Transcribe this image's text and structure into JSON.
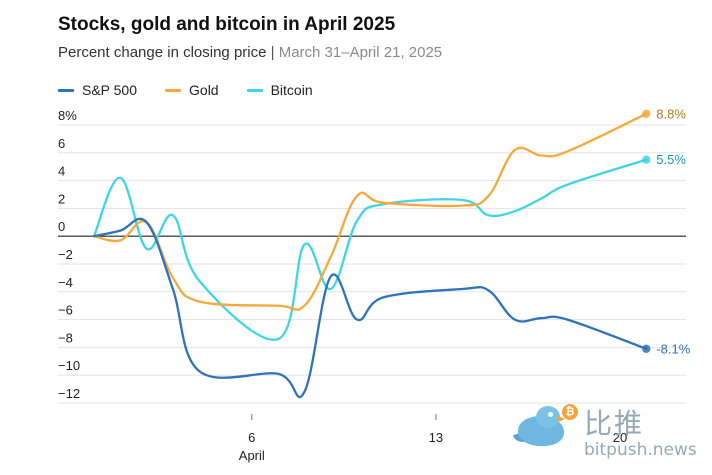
{
  "chart_data": {
    "type": "line",
    "title": "Stocks, gold and bitcoin in April 2025",
    "subtitle": "Percent change in closing price",
    "subtitle_range": "March 31–April 21, 2025",
    "x_dates": [
      "2025-03-31",
      "2025-04-01",
      "2025-04-02",
      "2025-04-03",
      "2025-04-04",
      "2025-04-07",
      "2025-04-08",
      "2025-04-09",
      "2025-04-10",
      "2025-04-11",
      "2025-04-14",
      "2025-04-15",
      "2025-04-16",
      "2025-04-17",
      "2025-04-18",
      "2025-04-21"
    ],
    "x_ticks": [
      {
        "date": "2025-04-06",
        "label": "6",
        "sublabel": "April"
      },
      {
        "date": "2025-04-13",
        "label": "13",
        "sublabel": ""
      },
      {
        "date": "2025-04-20",
        "label": "20",
        "sublabel": ""
      }
    ],
    "y_ticks": [
      {
        "value": 8,
        "label": "8%"
      },
      {
        "value": 6,
        "label": "6"
      },
      {
        "value": 4,
        "label": "4"
      },
      {
        "value": 2,
        "label": "2"
      },
      {
        "value": 0,
        "label": "0"
      },
      {
        "value": -2,
        "label": "−2"
      },
      {
        "value": -4,
        "label": "−4"
      },
      {
        "value": -6,
        "label": "−6"
      },
      {
        "value": -8,
        "label": "−8"
      },
      {
        "value": -10,
        "label": "−10"
      },
      {
        "value": -12,
        "label": "−12"
      }
    ],
    "ylim": [
      -12.5,
      8.5
    ],
    "grid": true,
    "legend_position": "top-left",
    "series": [
      {
        "name": "S&P 500",
        "color": "#2f73b8",
        "values": [
          0,
          0.4,
          1.0,
          -3.8,
          -9.7,
          -9.9,
          -11.2,
          -2.9,
          -6.0,
          -4.4,
          -3.8,
          -3.9,
          -6.0,
          -5.9,
          -6.0,
          -8.1
        ],
        "end_label": "-8.1%",
        "end_label_color": "#2f73b8"
      },
      {
        "name": "Gold",
        "color": "#f5a93b",
        "values": [
          0,
          -0.3,
          1.0,
          -3.0,
          -4.7,
          -5.0,
          -5.0,
          -1.5,
          2.9,
          2.4,
          2.2,
          2.9,
          6.2,
          5.8,
          6.1,
          8.8
        ],
        "end_label": "8.8%",
        "end_label_color": "#b07a1f"
      },
      {
        "name": "Bitcoin",
        "color": "#3fd5e3",
        "values": [
          0,
          4.2,
          -0.9,
          1.5,
          -3.2,
          -7.4,
          -0.6,
          -3.8,
          1.1,
          2.3,
          2.6,
          1.5,
          1.8,
          2.7,
          3.7,
          5.5
        ],
        "end_label": "5.5%",
        "end_label_color": "#1a9aa3"
      }
    ]
  },
  "watermark": {
    "coin_symbol": "₿",
    "text_cn": "比推",
    "url": "bitpush.news"
  }
}
